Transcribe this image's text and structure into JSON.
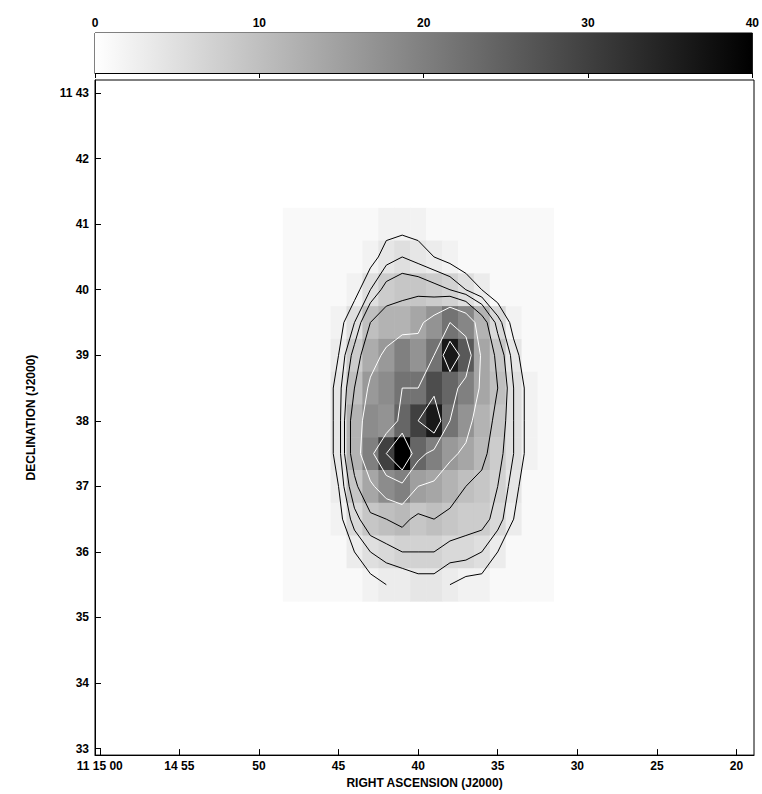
{
  "chart_data": {
    "type": "heatmap",
    "xlabel": "RIGHT ASCENSION (J2000)",
    "ylabel": "DECLINATION (J2000)",
    "xlim": [
      60.3,
      18.9
    ],
    "xticks": [
      {
        "value": 60,
        "label": "11 15 00"
      },
      {
        "value": 55,
        "label": "14 55"
      },
      50,
      45,
      40,
      35,
      30,
      25,
      20
    ],
    "ylim": [
      32.9,
      43.2
    ],
    "yticks": [
      33,
      34,
      35,
      36,
      37,
      38,
      39,
      40,
      41,
      42,
      {
        "value": 43,
        "label": "11 43"
      }
    ],
    "x": [
      48,
      47,
      46,
      45,
      44,
      43,
      42,
      41,
      40,
      39,
      38,
      37,
      36,
      35,
      34,
      33,
      32
    ],
    "y": [
      41,
      40.5,
      40,
      39.5,
      39,
      38.5,
      38,
      37.5,
      37,
      36.5,
      36,
      35.5
    ],
    "cells": [
      [
        1,
        1,
        1,
        1,
        1,
        1,
        2,
        2,
        2,
        1,
        1,
        1,
        1,
        1,
        1,
        1,
        1
      ],
      [
        1,
        1,
        1,
        1,
        1,
        2,
        4,
        5,
        4,
        3,
        2,
        1,
        1,
        1,
        1,
        1,
        1
      ],
      [
        1,
        1,
        1,
        1,
        2,
        5,
        8,
        9,
        9,
        8,
        7,
        5,
        3,
        1,
        1,
        1,
        1
      ],
      [
        1,
        1,
        1,
        2,
        5,
        10,
        12,
        12,
        14,
        17,
        22,
        19,
        12,
        6,
        2,
        1,
        1
      ],
      [
        1,
        1,
        1,
        3,
        8,
        13,
        16,
        20,
        17,
        22,
        36,
        26,
        14,
        9,
        4,
        1,
        1
      ],
      [
        1,
        1,
        1,
        4,
        10,
        16,
        18,
        22,
        22,
        28,
        24,
        20,
        14,
        10,
        5,
        2,
        1
      ],
      [
        1,
        1,
        1,
        4,
        12,
        18,
        17,
        24,
        30,
        36,
        22,
        17,
        12,
        9,
        5,
        2,
        1
      ],
      [
        1,
        1,
        1,
        4,
        12,
        20,
        30,
        40,
        24,
        20,
        16,
        14,
        11,
        8,
        5,
        2,
        1
      ],
      [
        1,
        1,
        1,
        3,
        9,
        14,
        18,
        20,
        15,
        14,
        12,
        10,
        9,
        7,
        4,
        1,
        1
      ],
      [
        1,
        1,
        1,
        2,
        6,
        9,
        10,
        11,
        9,
        10,
        9,
        8,
        8,
        6,
        3,
        1,
        1
      ],
      [
        1,
        1,
        1,
        1,
        3,
        5,
        6,
        7,
        7,
        7,
        6,
        6,
        5,
        3,
        1,
        1,
        1
      ],
      [
        1,
        1,
        1,
        1,
        1,
        2,
        3,
        3,
        4,
        4,
        3,
        2,
        2,
        1,
        1,
        1,
        1
      ]
    ],
    "contour_levels": [
      3,
      5,
      7,
      10,
      15,
      22,
      30
    ],
    "colorbar": {
      "range": [
        0,
        40
      ],
      "ticks": [
        0,
        10,
        20,
        30,
        40
      ]
    }
  }
}
